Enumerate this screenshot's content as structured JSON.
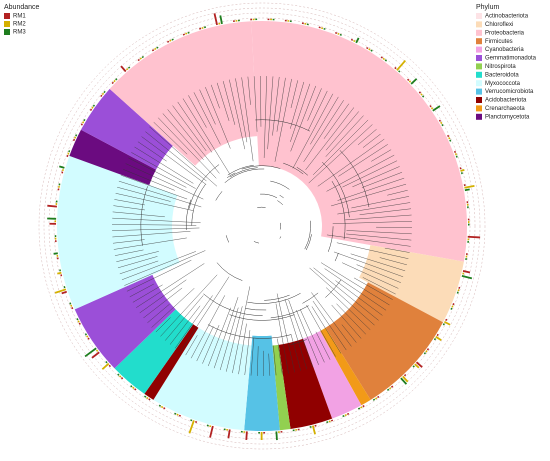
{
  "abundance_legend": {
    "title": "Abundance",
    "items": [
      {
        "label": "RM1",
        "color": "#b22222"
      },
      {
        "label": "RM2",
        "color": "#d4b000"
      },
      {
        "label": "RM3",
        "color": "#1e7d1e"
      }
    ]
  },
  "phylum_legend": {
    "title": "Phylum",
    "items": [
      {
        "label": "Actinobacteriota",
        "color": "#fde3e6"
      },
      {
        "label": "Chloroflexi",
        "color": "#fcdcb8"
      },
      {
        "label": "Proteobacteria",
        "color": "#ffc2cf"
      },
      {
        "label": "Firmicutes",
        "color": "#e0813c"
      },
      {
        "label": "Cyanobacteria",
        "color": "#f2a2e4"
      },
      {
        "label": "Gemmatimonadota",
        "color": "#9b4fd8"
      },
      {
        "label": "Nitrospirota",
        "color": "#92d050"
      },
      {
        "label": "Bacteroidota",
        "color": "#22ddcc"
      },
      {
        "label": "Myxococcota",
        "color": "#d2fcff"
      },
      {
        "label": "Verrucomicrobiota",
        "color": "#56c2e6"
      },
      {
        "label": "Acidobacteriota",
        "color": "#900000"
      },
      {
        "label": "Crenarchaeota",
        "color": "#f29a18"
      },
      {
        "label": "Planctomycetota",
        "color": "#6b0b80"
      }
    ]
  }
}
